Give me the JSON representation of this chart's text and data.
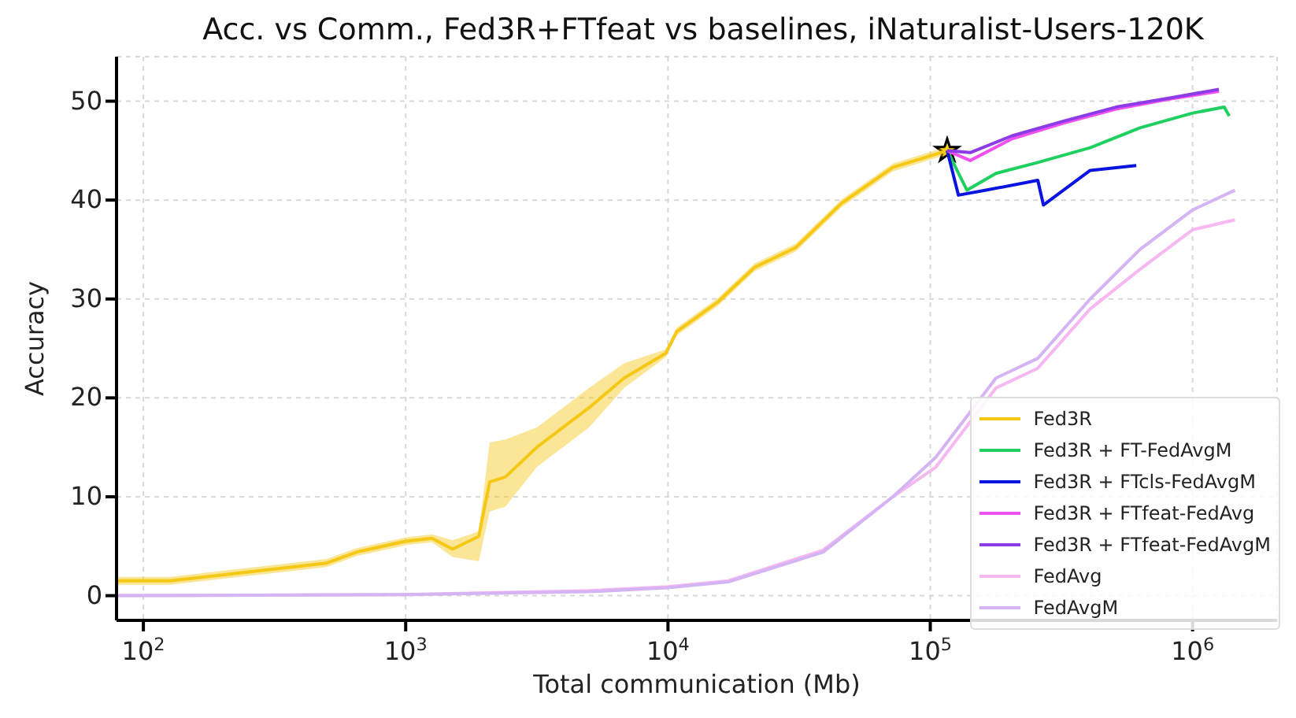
{
  "chart_data": {
    "type": "line",
    "title": "Acc. vs Comm., Fed3R+FTfeat vs baselines, iNaturalist-Users-120K",
    "xlabel": "Total communication (Mb)",
    "ylabel": "Accuracy",
    "log": "x",
    "grid": true,
    "legend": "bottom right",
    "marker": "none",
    "line_style": "solid",
    "xlim": [
      79,
      2100000
    ],
    "xticks": [
      {
        "value": 100,
        "label": "10$^{2}$"
      },
      {
        "value": 1000,
        "label": "10$^{3}$"
      },
      {
        "value": 10000,
        "label": "10$^{4}$"
      },
      {
        "value": 100000,
        "label": "10$^{5}$"
      },
      {
        "value": 1000000,
        "label": "10$^{6}$"
      }
    ],
    "ylim": [
      -2.5,
      54.5
    ],
    "yticks": [
      0,
      10,
      20,
      30,
      40,
      50
    ],
    "series": [
      {
        "name": "Fed3R",
        "color": "#f5c816",
        "x": [
          79,
          126,
          500,
          650,
          1000,
          1260,
          1510,
          1900,
          2090,
          2400,
          3160,
          5000,
          6800,
          9800,
          10800,
          15500,
          21400,
          30700,
          46000,
          72000,
          116000
        ],
        "values": [
          1.5,
          1.5,
          3.3,
          4.4,
          5.5,
          5.8,
          4.7,
          6.0,
          11.5,
          12,
          15,
          19,
          22,
          24.5,
          26.7,
          29.7,
          33.2,
          35.2,
          39.7,
          43.3,
          45
        ],
        "lower": [
          1.1,
          1.1,
          2.9,
          4.0,
          5.1,
          5.4,
          3.9,
          3.5,
          8.5,
          9,
          13,
          17,
          21,
          24.1,
          26.3,
          29.3,
          32.8,
          34.8,
          39.3,
          42.9,
          44.6
        ],
        "upper": [
          1.9,
          1.9,
          3.7,
          4.8,
          5.9,
          6.2,
          5.6,
          6.5,
          15.5,
          15.8,
          17,
          21,
          23.5,
          24.9,
          27.1,
          30.1,
          33.6,
          35.6,
          40.1,
          43.7,
          45.4
        ]
      },
      {
        "name": "Fed3R + FT-FedAvgM",
        "color": "#1fd060",
        "x": [
          116000,
          138000,
          178000,
          257000,
          407000,
          630000,
          1000000,
          1320000,
          1380000
        ],
        "values": [
          45,
          41,
          42.7,
          43.8,
          45.3,
          47.3,
          48.8,
          49.4,
          48.5
        ]
      },
      {
        "name": "Fed3R + FTcls-FedAvgM",
        "color": "#0a14e0",
        "x": [
          116000,
          128000,
          163000,
          257000,
          270000,
          407000,
          610000
        ],
        "values": [
          45,
          40.5,
          41,
          42,
          39.5,
          43,
          43.5
        ]
      },
      {
        "name": "Fed3R + FTfeat-FedAvg",
        "color": "#f050f0",
        "x": [
          116000,
          142000,
          205000,
          324000,
          510000,
          810000,
          1260000
        ],
        "values": [
          45,
          44,
          46.2,
          47.8,
          49.2,
          50.2,
          51
        ]
      },
      {
        "name": "Fed3R + FTfeat-FedAvgM",
        "color": "#8c3ce6",
        "x": [
          116000,
          142000,
          205000,
          324000,
          510000,
          810000,
          1260000
        ],
        "values": [
          45,
          44.8,
          46.5,
          48,
          49.4,
          50.3,
          51.2
        ]
      },
      {
        "name": "FedAvg",
        "color": "#f7b8f2",
        "x": [
          79,
          1000,
          5000,
          10000,
          17000,
          39000,
          72000,
          105000,
          178000,
          257000,
          407000,
          630000,
          1000000,
          1450000
        ],
        "values": [
          0,
          0.1,
          0.5,
          0.9,
          1.5,
          4.6,
          10,
          13,
          21,
          23,
          29,
          33,
          37,
          38
        ]
      },
      {
        "name": "FedAvgM",
        "color": "#d4b4f2",
        "x": [
          79,
          1000,
          5000,
          10000,
          17000,
          39000,
          72000,
          105000,
          178000,
          257000,
          407000,
          630000,
          1000000,
          1450000
        ],
        "values": [
          0,
          0.1,
          0.4,
          0.8,
          1.4,
          4.4,
          10,
          14,
          22,
          24,
          30,
          35,
          39,
          41
        ]
      },
      {
        "type": "scatter",
        "marker": "star",
        "color": "#ffd800",
        "x": [
          116000
        ],
        "values": [
          45
        ]
      }
    ]
  }
}
